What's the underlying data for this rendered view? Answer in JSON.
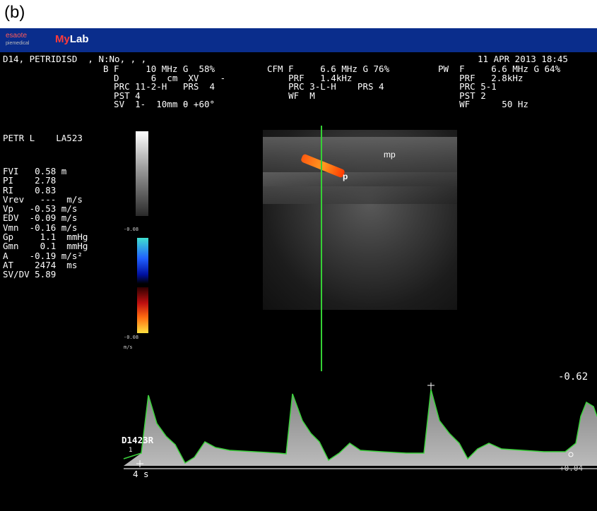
{
  "panel_label": "(b)",
  "topbar": {
    "brand_logo": "esaote",
    "brand_logo_sub": "piemedical",
    "product_my": "My",
    "product_lab": "Lab"
  },
  "header": {
    "patient": "D14, PETRIDISD  , N:No, , ,",
    "datetime": "11 APR 2013 18:45"
  },
  "params": {
    "b_mode": "B F     10 MHz G  58%\n  D      6  cm  XV    -\n  PRC 11-2-H   PRS  4\n  PST 4\n  SV  1-  10mm θ +60°",
    "cfm": "CFM F     6.6 MHz G 76%\n    PRF   1.4kHz\n    PRC 3-L-H    PRS 4\n    WF  M",
    "pw": "PW  F     6.6 MHz G 64%\n    PRF   2.8kHz\n    PRC 5-1\n    PST 2\n    WF      50 Hz"
  },
  "study": "PETR L    LA523",
  "measurements": "FVI   0.58 m\nPI    2.78\nRI    0.83\nVrev   ---  m/s\nVp   -0.53 m/s\nEDV  -0.09 m/s\nVmn  -0.16 m/s\nGp     1.1  mmHg\nGmn    0.1  mmHg\nA    -0.19 m/s²\nAT    2474  ms\nSV/DV 5.89",
  "colorbar": {
    "mid_label": "-0.08",
    "bottom_label": "-0.08",
    "unit": "m/s"
  },
  "image_labels": {
    "mp": "mp",
    "p": "p"
  },
  "spectrum": {
    "scale_top": "-0.62",
    "scale_bottom": "+0.04",
    "marker_label": "D1423R",
    "marker_sub": "1",
    "time_label": "4 s"
  },
  "colors": {
    "topbar": "#0a2d8c",
    "trace": "#3cd23c",
    "cursor": "#35d035"
  }
}
